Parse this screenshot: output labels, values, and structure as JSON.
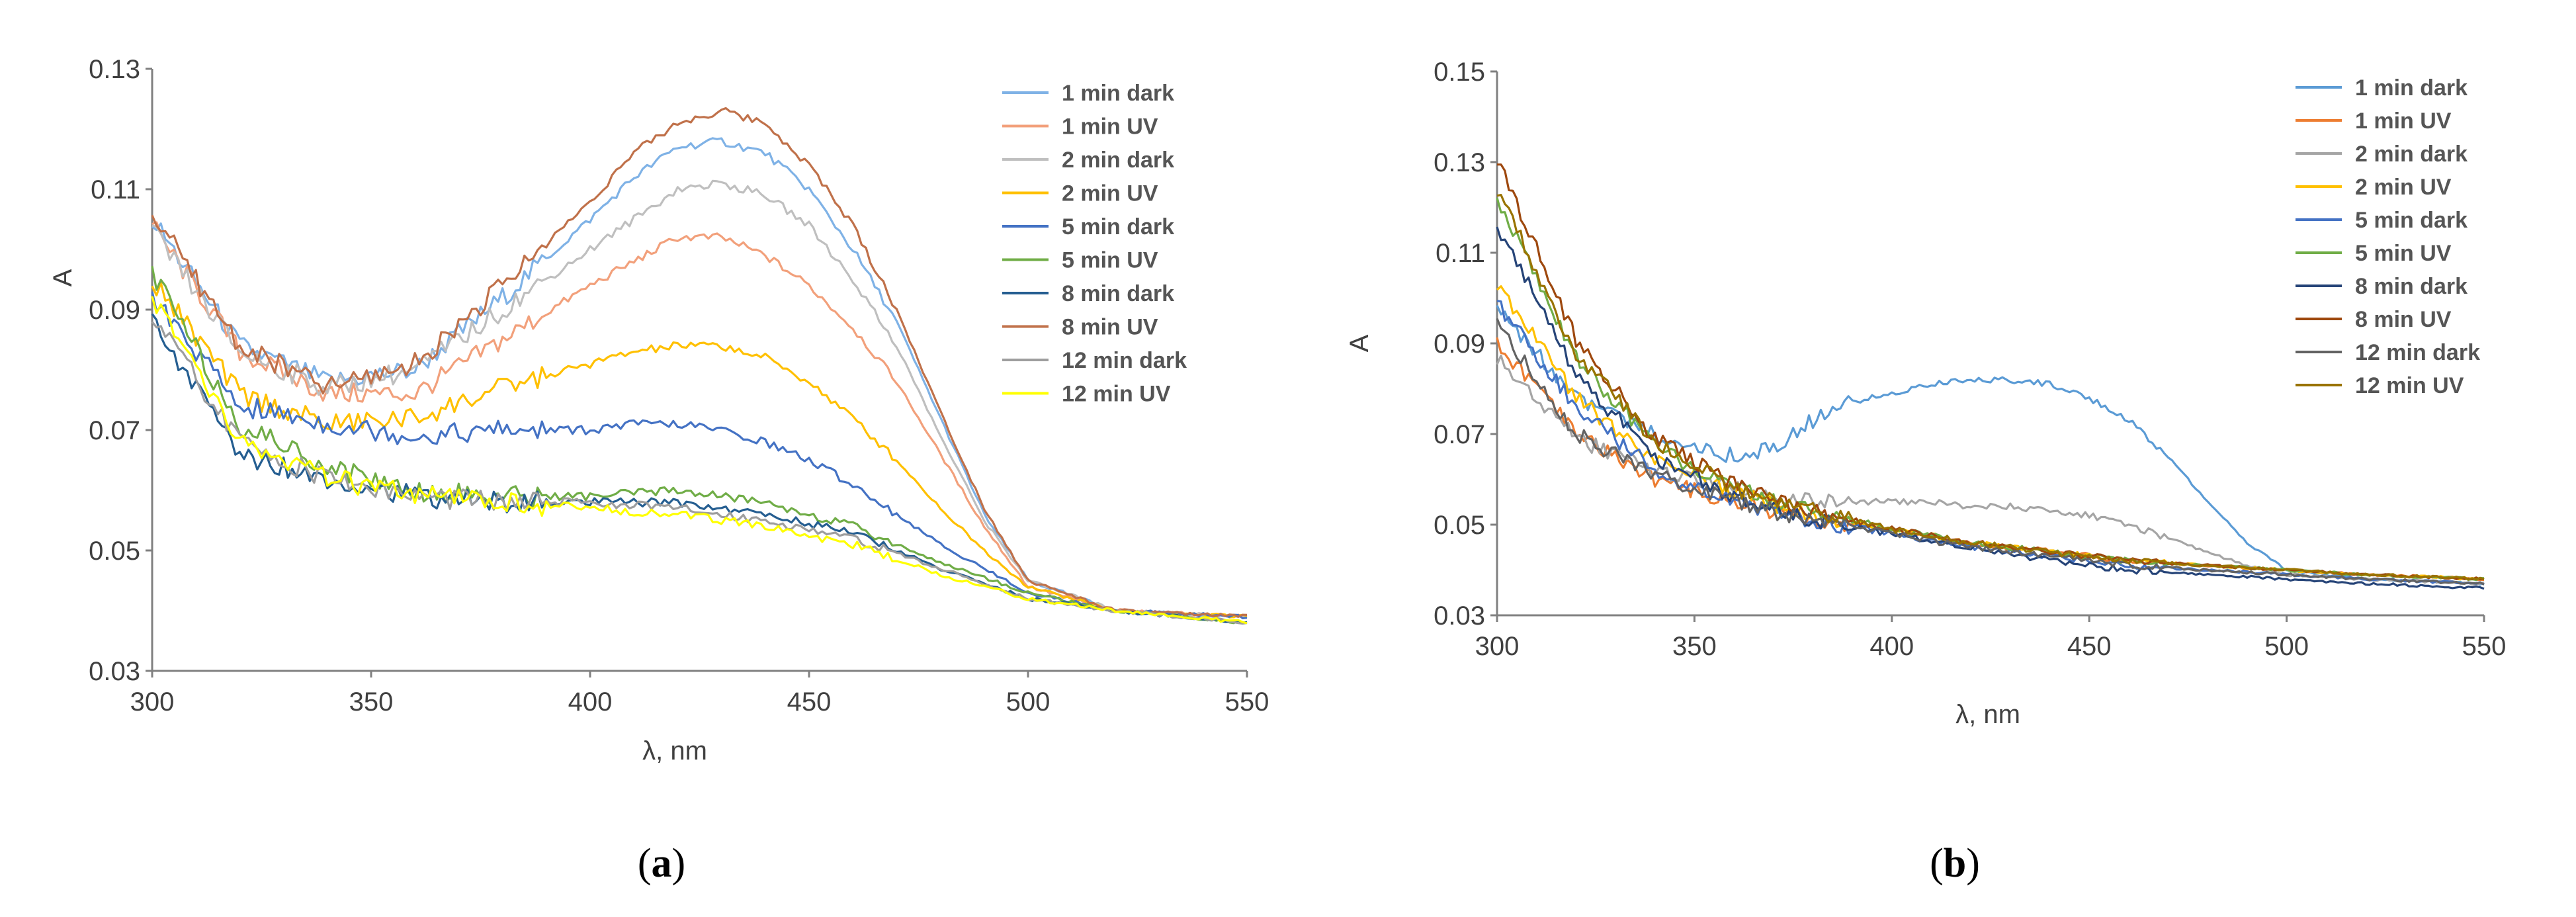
{
  "panels": [
    {
      "prefix": "(",
      "letter": "a",
      "suffix": ")"
    },
    {
      "prefix": "(",
      "letter": "b",
      "suffix": ")"
    }
  ],
  "chart_data": [
    {
      "type": "line",
      "title": "",
      "xlabel": "λ, nm",
      "ylabel": "A",
      "xlim": [
        300,
        550
      ],
      "ylim": [
        0.03,
        0.13
      ],
      "xticks": [
        "300",
        "350",
        "400",
        "450",
        "500",
        "550"
      ],
      "yticks": [
        "0.03",
        "0.05",
        "0.07",
        "0.09",
        "0.11",
        "0.13"
      ],
      "grid": false,
      "legend_position": "top-right",
      "series": [
        {
          "name": "1 min dark",
          "color": "#7fb2e6",
          "x": [
            300,
            320,
            340,
            360,
            380,
            400,
            410,
            420,
            430,
            440,
            450,
            460,
            470,
            480,
            490,
            500,
            520,
            550
          ],
          "y": [
            0.105,
            0.084,
            0.078,
            0.08,
            0.092,
            0.105,
            0.112,
            0.117,
            0.118,
            0.116,
            0.11,
            0.1,
            0.088,
            0.072,
            0.056,
            0.045,
            0.04,
            0.039
          ]
        },
        {
          "name": "1 min UV",
          "color": "#f2a07b",
          "x": [
            300,
            320,
            340,
            360,
            380,
            400,
            410,
            420,
            430,
            440,
            450,
            460,
            470,
            480,
            490,
            500,
            520,
            550
          ],
          "y": [
            0.104,
            0.083,
            0.076,
            0.076,
            0.085,
            0.094,
            0.098,
            0.102,
            0.102,
            0.099,
            0.094,
            0.087,
            0.078,
            0.066,
            0.054,
            0.044,
            0.04,
            0.039
          ]
        },
        {
          "name": "2 min dark",
          "color": "#bfbfbf",
          "x": [
            300,
            320,
            340,
            360,
            380,
            400,
            410,
            420,
            430,
            440,
            450,
            460,
            470,
            480,
            490,
            500,
            520,
            550
          ],
          "y": [
            0.103,
            0.083,
            0.077,
            0.08,
            0.09,
            0.1,
            0.105,
            0.11,
            0.111,
            0.109,
            0.104,
            0.095,
            0.084,
            0.069,
            0.055,
            0.045,
            0.04,
            0.039
          ]
        },
        {
          "name": "2 min UV",
          "color": "#ffc000",
          "x": [
            300,
            320,
            340,
            360,
            380,
            400,
            410,
            420,
            430,
            440,
            450,
            460,
            470,
            480,
            490,
            500,
            520,
            550
          ],
          "y": [
            0.095,
            0.076,
            0.071,
            0.072,
            0.077,
            0.081,
            0.083,
            0.084,
            0.084,
            0.082,
            0.078,
            0.072,
            0.065,
            0.057,
            0.05,
            0.044,
            0.04,
            0.039
          ]
        },
        {
          "name": "5 min dark",
          "color": "#4472c4",
          "x": [
            300,
            320,
            340,
            360,
            380,
            400,
            410,
            420,
            430,
            440,
            450,
            460,
            470,
            480,
            490,
            500,
            520,
            550
          ],
          "y": [
            0.092,
            0.074,
            0.071,
            0.069,
            0.07,
            0.07,
            0.071,
            0.071,
            0.07,
            0.068,
            0.065,
            0.061,
            0.056,
            0.051,
            0.047,
            0.043,
            0.04,
            0.039
          ]
        },
        {
          "name": "5 min UV",
          "color": "#70ad47",
          "x": [
            300,
            320,
            340,
            360,
            380,
            400,
            420,
            440,
            460,
            480,
            500,
            520,
            550
          ],
          "y": [
            0.096,
            0.071,
            0.064,
            0.06,
            0.059,
            0.059,
            0.06,
            0.058,
            0.054,
            0.048,
            0.043,
            0.04,
            0.038
          ]
        },
        {
          "name": "8 min dark",
          "color": "#255e91",
          "x": [
            300,
            320,
            340,
            360,
            380,
            400,
            420,
            440,
            460,
            480,
            500,
            520,
            550
          ],
          "y": [
            0.088,
            0.066,
            0.062,
            0.059,
            0.058,
            0.058,
            0.058,
            0.056,
            0.053,
            0.047,
            0.042,
            0.04,
            0.038
          ]
        },
        {
          "name": "8 min UV",
          "color": "#c0714a",
          "x": [
            300,
            320,
            340,
            360,
            380,
            400,
            410,
            420,
            430,
            440,
            450,
            460,
            470,
            480,
            490,
            500,
            520,
            550
          ],
          "y": [
            0.106,
            0.084,
            0.077,
            0.081,
            0.094,
            0.108,
            0.116,
            0.121,
            0.123,
            0.121,
            0.114,
            0.104,
            0.09,
            0.073,
            0.057,
            0.045,
            0.04,
            0.039
          ]
        },
        {
          "name": "12 min dark",
          "color": "#9e9e9e",
          "x": [
            300,
            320,
            340,
            360,
            380,
            400,
            420,
            440,
            460,
            480,
            500,
            520,
            550
          ],
          "y": [
            0.089,
            0.068,
            0.062,
            0.059,
            0.058,
            0.058,
            0.057,
            0.055,
            0.052,
            0.047,
            0.042,
            0.04,
            0.038
          ]
        },
        {
          "name": "12 min UV",
          "color": "#ffff00",
          "x": [
            300,
            320,
            340,
            360,
            380,
            400,
            420,
            440,
            460,
            480,
            500,
            520,
            550
          ],
          "y": [
            0.092,
            0.068,
            0.062,
            0.059,
            0.058,
            0.057,
            0.056,
            0.054,
            0.051,
            0.046,
            0.042,
            0.04,
            0.038
          ]
        }
      ]
    },
    {
      "type": "line",
      "title": "",
      "xlabel": "λ, nm",
      "ylabel": "A",
      "xlim": [
        300,
        550
      ],
      "ylim": [
        0.03,
        0.15
      ],
      "xticks": [
        "300",
        "350",
        "400",
        "450",
        "500",
        "550"
      ],
      "yticks": [
        "0.03",
        "0.05",
        "0.07",
        "0.09",
        "0.11",
        "0.13",
        "0.15"
      ],
      "grid": false,
      "legend_position": "top-right",
      "series": [
        {
          "name": "1 min dark",
          "color": "#5b9bd5",
          "x": [
            300,
            320,
            340,
            360,
            370,
            380,
            390,
            400,
            410,
            420,
            430,
            440,
            450,
            460,
            470,
            480,
            490,
            500,
            520,
            550
          ],
          "y": [
            0.098,
            0.078,
            0.07,
            0.065,
            0.067,
            0.073,
            0.077,
            0.079,
            0.081,
            0.082,
            0.082,
            0.081,
            0.078,
            0.073,
            0.065,
            0.055,
            0.046,
            0.04,
            0.038,
            0.037
          ]
        },
        {
          "name": "1 min UV",
          "color": "#ed7d31",
          "x": [
            300,
            320,
            340,
            360,
            380,
            400,
            420,
            440,
            460,
            480,
            500,
            520,
            550
          ],
          "y": [
            0.09,
            0.07,
            0.06,
            0.055,
            0.051,
            0.049,
            0.046,
            0.044,
            0.042,
            0.041,
            0.04,
            0.039,
            0.038
          ]
        },
        {
          "name": "2 min dark",
          "color": "#a5a5a5",
          "x": [
            300,
            320,
            340,
            360,
            380,
            400,
            410,
            420,
            430,
            440,
            450,
            460,
            470,
            480,
            490,
            500,
            520,
            550
          ],
          "y": [
            0.087,
            0.069,
            0.062,
            0.058,
            0.055,
            0.055,
            0.055,
            0.054,
            0.054,
            0.053,
            0.052,
            0.05,
            0.047,
            0.044,
            0.041,
            0.039,
            0.038,
            0.037
          ]
        },
        {
          "name": "2 min UV",
          "color": "#ffc000",
          "x": [
            300,
            320,
            340,
            360,
            380,
            400,
            420,
            440,
            460,
            480,
            500,
            520,
            550
          ],
          "y": [
            0.103,
            0.078,
            0.064,
            0.057,
            0.052,
            0.049,
            0.046,
            0.044,
            0.042,
            0.041,
            0.04,
            0.039,
            0.038
          ]
        },
        {
          "name": "5 min dark",
          "color": "#4472c4",
          "x": [
            300,
            320,
            340,
            360,
            380,
            400,
            420,
            440,
            460,
            480,
            500,
            520,
            550
          ],
          "y": [
            0.099,
            0.076,
            0.062,
            0.055,
            0.051,
            0.048,
            0.045,
            0.043,
            0.041,
            0.04,
            0.039,
            0.038,
            0.037
          ]
        },
        {
          "name": "5 min UV",
          "color": "#70ad47",
          "x": [
            300,
            320,
            340,
            360,
            380,
            400,
            420,
            440,
            460,
            480,
            500,
            520,
            550
          ],
          "y": [
            0.122,
            0.087,
            0.067,
            0.058,
            0.053,
            0.049,
            0.046,
            0.044,
            0.042,
            0.041,
            0.04,
            0.039,
            0.038
          ]
        },
        {
          "name": "8 min dark",
          "color": "#264478",
          "x": [
            300,
            320,
            340,
            360,
            380,
            400,
            420,
            440,
            460,
            480,
            500,
            520,
            550
          ],
          "y": [
            0.116,
            0.083,
            0.065,
            0.056,
            0.051,
            0.048,
            0.045,
            0.042,
            0.04,
            0.039,
            0.038,
            0.037,
            0.036
          ]
        },
        {
          "name": "8 min UV",
          "color": "#9e480e",
          "x": [
            300,
            320,
            340,
            360,
            380,
            400,
            420,
            440,
            460,
            480,
            500,
            520,
            550
          ],
          "y": [
            0.131,
            0.091,
            0.069,
            0.059,
            0.053,
            0.049,
            0.046,
            0.044,
            0.042,
            0.041,
            0.04,
            0.039,
            0.038
          ]
        },
        {
          "name": "12 min dark",
          "color": "#636363",
          "x": [
            300,
            320,
            340,
            360,
            380,
            400,
            420,
            440,
            460,
            480,
            500,
            520,
            550
          ],
          "y": [
            0.094,
            0.07,
            0.061,
            0.055,
            0.051,
            0.048,
            0.045,
            0.043,
            0.041,
            0.04,
            0.039,
            0.038,
            0.037
          ]
        },
        {
          "name": "12 min UV",
          "color": "#997300",
          "x": [
            300,
            320,
            340,
            360,
            380,
            400,
            420,
            440,
            460,
            480,
            500,
            520,
            550
          ],
          "y": [
            0.124,
            0.088,
            0.068,
            0.058,
            0.053,
            0.049,
            0.046,
            0.044,
            0.042,
            0.041,
            0.04,
            0.039,
            0.038
          ]
        }
      ]
    }
  ]
}
